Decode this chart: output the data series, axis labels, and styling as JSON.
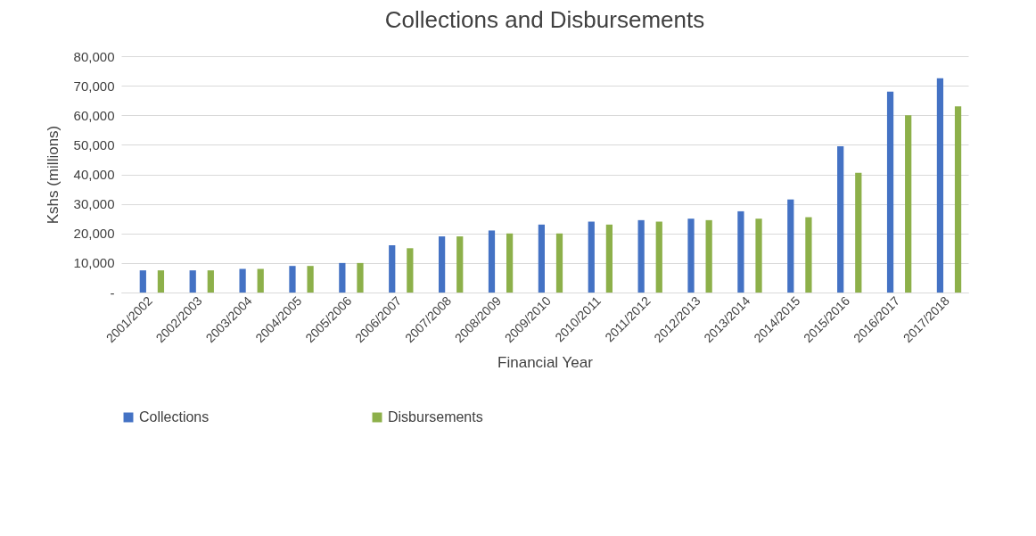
{
  "chart_data": {
    "type": "bar",
    "title": "Collections and Disbursements",
    "xlabel": "Financial Year",
    "ylabel": "Kshs (millions)",
    "categories": [
      "2001/2002",
      "2002/2003",
      "2003/2004",
      "2004/2005",
      "2005/2006",
      "2006/2007",
      "2007/2008",
      "2008/2009",
      "2009/2010",
      "2010/2011",
      "2011/2012",
      "2012/2013",
      "2013/2014",
      "2014/2015",
      "2015/2016",
      "2016/2017",
      "2017/2018"
    ],
    "series": [
      {
        "name": "Collections",
        "color": "#4472c4",
        "values": [
          7500,
          7500,
          8000,
          9000,
          10000,
          16000,
          19000,
          21000,
          23000,
          24000,
          24500,
          25000,
          27500,
          31500,
          49500,
          68000,
          72500
        ]
      },
      {
        "name": "Disbursements",
        "color": "#8db04a",
        "values": [
          7500,
          7500,
          8000,
          9000,
          10000,
          15000,
          19000,
          20000,
          20000,
          23000,
          24000,
          24500,
          25000,
          25500,
          40500,
          60000,
          63000
        ]
      }
    ],
    "ylim": [
      0,
      80000
    ],
    "yticks": [
      {
        "value": 0,
        "label": "-"
      },
      {
        "value": 10000,
        "label": "10,000"
      },
      {
        "value": 20000,
        "label": "20,000"
      },
      {
        "value": 30000,
        "label": "30,000"
      },
      {
        "value": 40000,
        "label": "40,000"
      },
      {
        "value": 50000,
        "label": "50,000"
      },
      {
        "value": 60000,
        "label": "60,000"
      },
      {
        "value": 70000,
        "label": "70,000"
      },
      {
        "value": 80000,
        "label": "80,000"
      }
    ],
    "grid": "y",
    "legend": "bottom"
  }
}
